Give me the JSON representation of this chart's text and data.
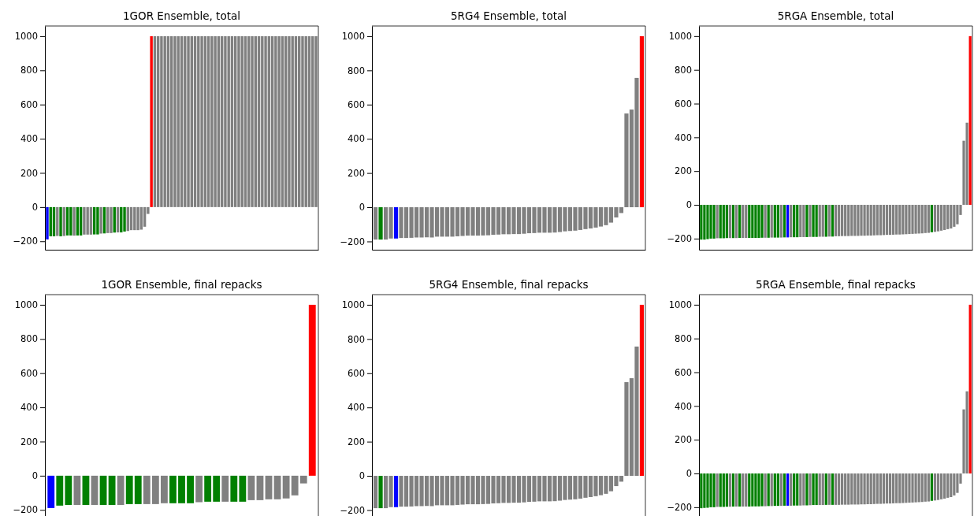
{
  "chart_data": [
    {
      "type": "bar",
      "title": "1GOR Ensemble, total",
      "ylim": [
        -249.5,
        1059.5
      ],
      "yticks": [
        -200,
        0,
        200,
        400,
        600,
        800,
        1000
      ],
      "categories": [
        null,
        null,
        null,
        null,
        null,
        null,
        null,
        null,
        null,
        null,
        null,
        null,
        null,
        null,
        null,
        null,
        null,
        null,
        null,
        null,
        null,
        null,
        null,
        null,
        null,
        null,
        null,
        null,
        null,
        null,
        null,
        null,
        null,
        null,
        null,
        null,
        null,
        null,
        null,
        null,
        null,
        null,
        null,
        null,
        null,
        null,
        null,
        null,
        null,
        null,
        null,
        null,
        null,
        null,
        null,
        null,
        null,
        null,
        null,
        null,
        null,
        null,
        null,
        null,
        null,
        null,
        null,
        null,
        null,
        null,
        null,
        null,
        null,
        null,
        null,
        null,
        null,
        null,
        null,
        null,
        null
      ],
      "values": [
        -189,
        -171,
        -171,
        -169,
        -171,
        -169,
        -166,
        -166,
        -167,
        -166,
        -166,
        -161,
        -161,
        -161,
        -160,
        -160,
        -155,
        -154,
        -152,
        -152,
        -149,
        -148,
        -148,
        -143,
        -140,
        -135,
        -135,
        -135,
        -132,
        -115,
        -40,
        1000,
        1000,
        1000,
        1000,
        1000,
        1000,
        1000,
        1000,
        1000,
        1000,
        1000,
        1000,
        1000,
        1000,
        1000,
        1000,
        1000,
        1000,
        1000,
        1000,
        1000,
        1000,
        1000,
        1000,
        1000,
        1000,
        1000,
        1000,
        1000,
        1000,
        1000,
        1000,
        1000,
        1000,
        1000,
        1000,
        1000,
        1000,
        1000,
        1000,
        1000,
        1000,
        1000,
        1000,
        1000,
        1000,
        1000,
        1000,
        1000,
        1000
      ],
      "colors": [
        "#0000ff",
        "#008000",
        "#008000",
        "#808080",
        "#008000",
        "#808080",
        "#008000",
        "#008000",
        "#808080",
        "#008000",
        "#008000",
        "#808080",
        "#808080",
        "#808080",
        "#008000",
        "#008000",
        "#808080",
        "#008000",
        "#808080",
        "#808080",
        "#008000",
        "#808080",
        "#008000",
        "#008000",
        "#808080",
        "#808080",
        "#808080",
        "#808080",
        "#808080",
        "#808080",
        "#808080",
        "#ff0000",
        "#808080",
        "#808080",
        "#808080",
        "#808080",
        "#808080",
        "#808080",
        "#808080",
        "#808080",
        "#808080",
        "#808080",
        "#808080",
        "#808080",
        "#808080",
        "#808080",
        "#808080",
        "#808080",
        "#808080",
        "#808080",
        "#808080",
        "#808080",
        "#808080",
        "#808080",
        "#808080",
        "#808080",
        "#808080",
        "#808080",
        "#808080",
        "#808080",
        "#808080",
        "#808080",
        "#808080",
        "#808080",
        "#808080",
        "#808080",
        "#808080",
        "#808080",
        "#808080",
        "#808080",
        "#808080",
        "#808080",
        "#808080",
        "#808080",
        "#808080",
        "#808080",
        "#808080",
        "#808080",
        "#808080",
        "#808080",
        "#808080"
      ]
    },
    {
      "type": "bar",
      "title": "5RG4 Ensemble, total",
      "ylim": [
        -248.5,
        1059.5
      ],
      "yticks": [
        -200,
        0,
        200,
        400,
        600,
        800,
        1000
      ],
      "categories": [
        null,
        null,
        null,
        null,
        null,
        null,
        null,
        null,
        null,
        null,
        null,
        null,
        null,
        null,
        null,
        null,
        null,
        null,
        null,
        null,
        null,
        null,
        null,
        null,
        null,
        null,
        null,
        null,
        null,
        null,
        null,
        null,
        null,
        null,
        null,
        null,
        null,
        null,
        null,
        null,
        null,
        null,
        null,
        null,
        null,
        null,
        null,
        null,
        null,
        null,
        null,
        null,
        null
      ],
      "values": [
        -189,
        -189,
        -189,
        -183,
        -183,
        -180,
        -180,
        -179,
        -177,
        -177,
        -176,
        -177,
        -172,
        -172,
        -172,
        -172,
        -170,
        -168,
        -166,
        -166,
        -166,
        -165,
        -164,
        -161,
        -160,
        -158,
        -158,
        -157,
        -157,
        -155,
        -152,
        -151,
        -149,
        -149,
        -149,
        -148,
        -145,
        -141,
        -139,
        -137,
        -133,
        -128,
        -124,
        -119,
        -113,
        -105,
        -90,
        -60,
        -34,
        548,
        571,
        756,
        1000
      ],
      "colors": [
        "#808080",
        "#008000",
        "#808080",
        "#808080",
        "#0000ff",
        "#808080",
        "#808080",
        "#808080",
        "#808080",
        "#808080",
        "#808080",
        "#808080",
        "#808080",
        "#808080",
        "#808080",
        "#808080",
        "#808080",
        "#808080",
        "#808080",
        "#808080",
        "#808080",
        "#808080",
        "#808080",
        "#808080",
        "#808080",
        "#808080",
        "#808080",
        "#808080",
        "#808080",
        "#808080",
        "#808080",
        "#808080",
        "#808080",
        "#808080",
        "#808080",
        "#808080",
        "#808080",
        "#808080",
        "#808080",
        "#808080",
        "#808080",
        "#808080",
        "#808080",
        "#808080",
        "#808080",
        "#808080",
        "#808080",
        "#808080",
        "#808080",
        "#808080",
        "#808080",
        "#808080",
        "#ff0000"
      ]
    },
    {
      "type": "bar",
      "title": "5RGA Ensemble, total",
      "ylim": [
        -266,
        1060
      ],
      "yticks": [
        -200,
        0,
        200,
        400,
        600,
        800,
        1000
      ],
      "categories": [
        null,
        null,
        null,
        null,
        null,
        null,
        null,
        null,
        null,
        null,
        null,
        null,
        null,
        null,
        null,
        null,
        null,
        null,
        null,
        null,
        null,
        null,
        null,
        null,
        null,
        null,
        null,
        null,
        null,
        null,
        null,
        null,
        null,
        null,
        null,
        null,
        null,
        null,
        null,
        null,
        null,
        null,
        null,
        null,
        null,
        null,
        null,
        null,
        null,
        null,
        null,
        null,
        null,
        null,
        null,
        null,
        null,
        null,
        null,
        null,
        null,
        null,
        null,
        null,
        null,
        null,
        null,
        null,
        null,
        null,
        null,
        null,
        null,
        null,
        null,
        null,
        null,
        null,
        null,
        null,
        null,
        null,
        null,
        null,
        null
      ],
      "values": [
        -206,
        -206,
        -203,
        -200,
        -200,
        -198,
        -198,
        -198,
        -197,
        -197,
        -197,
        -197,
        -196,
        -196,
        -196,
        -196,
        -196,
        -196,
        -196,
        -195,
        -195,
        -195,
        -194,
        -194,
        -194,
        -194,
        -193,
        -193,
        -192,
        -192,
        -192,
        -191,
        -191,
        -191,
        -190,
        -190,
        -190,
        -189,
        -189,
        -189,
        -188,
        -188,
        -186,
        -186,
        -185,
        -185,
        -185,
        -184,
        -184,
        -184,
        -183,
        -183,
        -182,
        -182,
        -181,
        -180,
        -180,
        -179,
        -178,
        -178,
        -177,
        -176,
        -176,
        -175,
        -174,
        -173,
        -172,
        -171,
        -170,
        -169,
        -167,
        -166,
        -162,
        -160,
        -157,
        -153,
        -149,
        -144,
        -140,
        -130,
        -115,
        -60,
        380,
        487,
        1000
      ],
      "colors": [
        "#008000",
        "#008000",
        "#008000",
        "#008000",
        "#008000",
        "#808080",
        "#008000",
        "#008000",
        "#008000",
        "#808080",
        "#008000",
        "#808080",
        "#008000",
        "#808080",
        "#808080",
        "#008000",
        "#008000",
        "#008000",
        "#008000",
        "#008000",
        "#808080",
        "#008000",
        "#808080",
        "#008000",
        "#008000",
        "#808080",
        "#008000",
        "#0000ff",
        "#808080",
        "#008000",
        "#008000",
        "#808080",
        "#808080",
        "#008000",
        "#808080",
        "#008000",
        "#008000",
        "#808080",
        "#808080",
        "#008000",
        "#808080",
        "#008000",
        "#808080",
        "#808080",
        "#808080",
        "#808080",
        "#808080",
        "#808080",
        "#808080",
        "#808080",
        "#808080",
        "#808080",
        "#808080",
        "#808080",
        "#808080",
        "#808080",
        "#808080",
        "#808080",
        "#808080",
        "#808080",
        "#808080",
        "#808080",
        "#808080",
        "#808080",
        "#808080",
        "#808080",
        "#808080",
        "#808080",
        "#808080",
        "#808080",
        "#808080",
        "#808080",
        "#008000",
        "#808080",
        "#808080",
        "#808080",
        "#808080",
        "#808080",
        "#808080",
        "#808080",
        "#808080",
        "#808080",
        "#808080",
        "#808080",
        "#ff0000"
      ]
    },
    {
      "type": "bar",
      "title": "1GOR Ensemble, final repacks",
      "ylim": [
        -249.5,
        1059.5
      ],
      "yticks": [
        -200,
        0,
        200,
        400,
        600,
        800,
        1000
      ],
      "categories": [
        null,
        null,
        null,
        null,
        null,
        null,
        null,
        null,
        null,
        null,
        null,
        null,
        null,
        null,
        null,
        null,
        null,
        null,
        null,
        null,
        null,
        null,
        null,
        null,
        null,
        null,
        null,
        null,
        null,
        null,
        null
      ],
      "values": [
        -189,
        -175,
        -171,
        -171,
        -171,
        -171,
        -171,
        -171,
        -171,
        -166,
        -166,
        -166,
        -166,
        -161,
        -161,
        -161,
        -161,
        -155,
        -152,
        -152,
        -152,
        -152,
        -152,
        -143,
        -143,
        -138,
        -138,
        -133,
        -115,
        -45,
        1000
      ],
      "colors": [
        "#0000ff",
        "#008000",
        "#008000",
        "#808080",
        "#008000",
        "#808080",
        "#008000",
        "#008000",
        "#808080",
        "#008000",
        "#008000",
        "#808080",
        "#808080",
        "#808080",
        "#008000",
        "#008000",
        "#008000",
        "#808080",
        "#008000",
        "#008000",
        "#808080",
        "#008000",
        "#008000",
        "#808080",
        "#808080",
        "#808080",
        "#808080",
        "#808080",
        "#808080",
        "#808080",
        "#ff0000"
      ]
    },
    {
      "type": "bar",
      "title": "5RG4 Ensemble, final repacks",
      "ylim": [
        -248.5,
        1059.5
      ],
      "yticks": [
        -200,
        0,
        200,
        400,
        600,
        800,
        1000
      ],
      "categories": [
        null,
        null,
        null,
        null,
        null,
        null,
        null,
        null,
        null,
        null,
        null,
        null,
        null,
        null,
        null,
        null,
        null,
        null,
        null,
        null,
        null,
        null,
        null,
        null,
        null,
        null,
        null,
        null,
        null,
        null,
        null,
        null,
        null,
        null,
        null,
        null,
        null,
        null,
        null,
        null,
        null,
        null,
        null,
        null,
        null,
        null,
        null,
        null,
        null,
        null,
        null,
        null,
        null
      ],
      "values": [
        -189,
        -189,
        -189,
        -183,
        -183,
        -180,
        -180,
        -179,
        -177,
        -177,
        -176,
        -177,
        -172,
        -172,
        -172,
        -172,
        -170,
        -168,
        -166,
        -166,
        -166,
        -165,
        -164,
        -161,
        -160,
        -158,
        -158,
        -157,
        -157,
        -155,
        -152,
        -151,
        -149,
        -149,
        -149,
        -148,
        -145,
        -141,
        -139,
        -137,
        -133,
        -128,
        -124,
        -119,
        -113,
        -105,
        -90,
        -60,
        -34,
        548,
        571,
        756,
        1000
      ],
      "colors": [
        "#808080",
        "#008000",
        "#808080",
        "#808080",
        "#0000ff",
        "#808080",
        "#808080",
        "#808080",
        "#808080",
        "#808080",
        "#808080",
        "#808080",
        "#808080",
        "#808080",
        "#808080",
        "#808080",
        "#808080",
        "#808080",
        "#808080",
        "#808080",
        "#808080",
        "#808080",
        "#808080",
        "#808080",
        "#808080",
        "#808080",
        "#808080",
        "#808080",
        "#808080",
        "#808080",
        "#808080",
        "#808080",
        "#808080",
        "#808080",
        "#808080",
        "#808080",
        "#808080",
        "#808080",
        "#808080",
        "#808080",
        "#808080",
        "#808080",
        "#808080",
        "#808080",
        "#808080",
        "#808080",
        "#808080",
        "#808080",
        "#808080",
        "#808080",
        "#808080",
        "#808080",
        "#ff0000"
      ]
    },
    {
      "type": "bar",
      "title": "5RGA Ensemble, final repacks",
      "ylim": [
        -266,
        1060
      ],
      "yticks": [
        -200,
        0,
        200,
        400,
        600,
        800,
        1000
      ],
      "categories": [
        null,
        null,
        null,
        null,
        null,
        null,
        null,
        null,
        null,
        null,
        null,
        null,
        null,
        null,
        null,
        null,
        null,
        null,
        null,
        null,
        null,
        null,
        null,
        null,
        null,
        null,
        null,
        null,
        null,
        null,
        null,
        null,
        null,
        null,
        null,
        null,
        null,
        null,
        null,
        null,
        null,
        null,
        null,
        null,
        null,
        null,
        null,
        null,
        null,
        null,
        null,
        null,
        null,
        null,
        null,
        null,
        null,
        null,
        null,
        null,
        null,
        null,
        null,
        null,
        null,
        null,
        null,
        null,
        null,
        null,
        null,
        null,
        null,
        null,
        null,
        null,
        null,
        null,
        null,
        null,
        null,
        null,
        null,
        null,
        null
      ],
      "values": [
        -206,
        -204,
        -203,
        -200,
        -200,
        -198,
        -198,
        -198,
        -197,
        -197,
        -196,
        -196,
        -196,
        -196,
        -196,
        -196,
        -195,
        -195,
        -195,
        -194,
        -194,
        -193,
        -193,
        -192,
        -192,
        -192,
        -191,
        -191,
        -191,
        -190,
        -190,
        -190,
        -189,
        -189,
        -188,
        -187,
        -187,
        -187,
        -187,
        -186,
        -186,
        -186,
        -186,
        -186,
        -185,
        -185,
        -185,
        -184,
        -184,
        -184,
        -183,
        -183,
        -182,
        -182,
        -181,
        -180,
        -180,
        -179,
        -178,
        -178,
        -177,
        -176,
        -176,
        -175,
        -174,
        -173,
        -172,
        -171,
        -170,
        -169,
        -167,
        -166,
        -162,
        -160,
        -157,
        -153,
        -149,
        -144,
        -140,
        -130,
        -115,
        -60,
        380,
        487,
        1000
      ],
      "colors": [
        "#008000",
        "#008000",
        "#008000",
        "#008000",
        "#008000",
        "#808080",
        "#008000",
        "#008000",
        "#008000",
        "#808080",
        "#008000",
        "#808080",
        "#008000",
        "#808080",
        "#808080",
        "#008000",
        "#008000",
        "#008000",
        "#008000",
        "#008000",
        "#808080",
        "#008000",
        "#808080",
        "#008000",
        "#008000",
        "#808080",
        "#008000",
        "#0000ff",
        "#808080",
        "#008000",
        "#008000",
        "#808080",
        "#808080",
        "#008000",
        "#808080",
        "#008000",
        "#008000",
        "#808080",
        "#808080",
        "#008000",
        "#808080",
        "#008000",
        "#808080",
        "#808080",
        "#808080",
        "#808080",
        "#808080",
        "#808080",
        "#808080",
        "#808080",
        "#808080",
        "#808080",
        "#808080",
        "#808080",
        "#808080",
        "#808080",
        "#808080",
        "#808080",
        "#808080",
        "#808080",
        "#808080",
        "#808080",
        "#808080",
        "#808080",
        "#808080",
        "#808080",
        "#808080",
        "#808080",
        "#808080",
        "#808080",
        "#808080",
        "#808080",
        "#008000",
        "#808080",
        "#808080",
        "#808080",
        "#808080",
        "#808080",
        "#808080",
        "#808080",
        "#808080",
        "#808080",
        "#808080",
        "#808080",
        "#ff0000"
      ]
    }
  ]
}
